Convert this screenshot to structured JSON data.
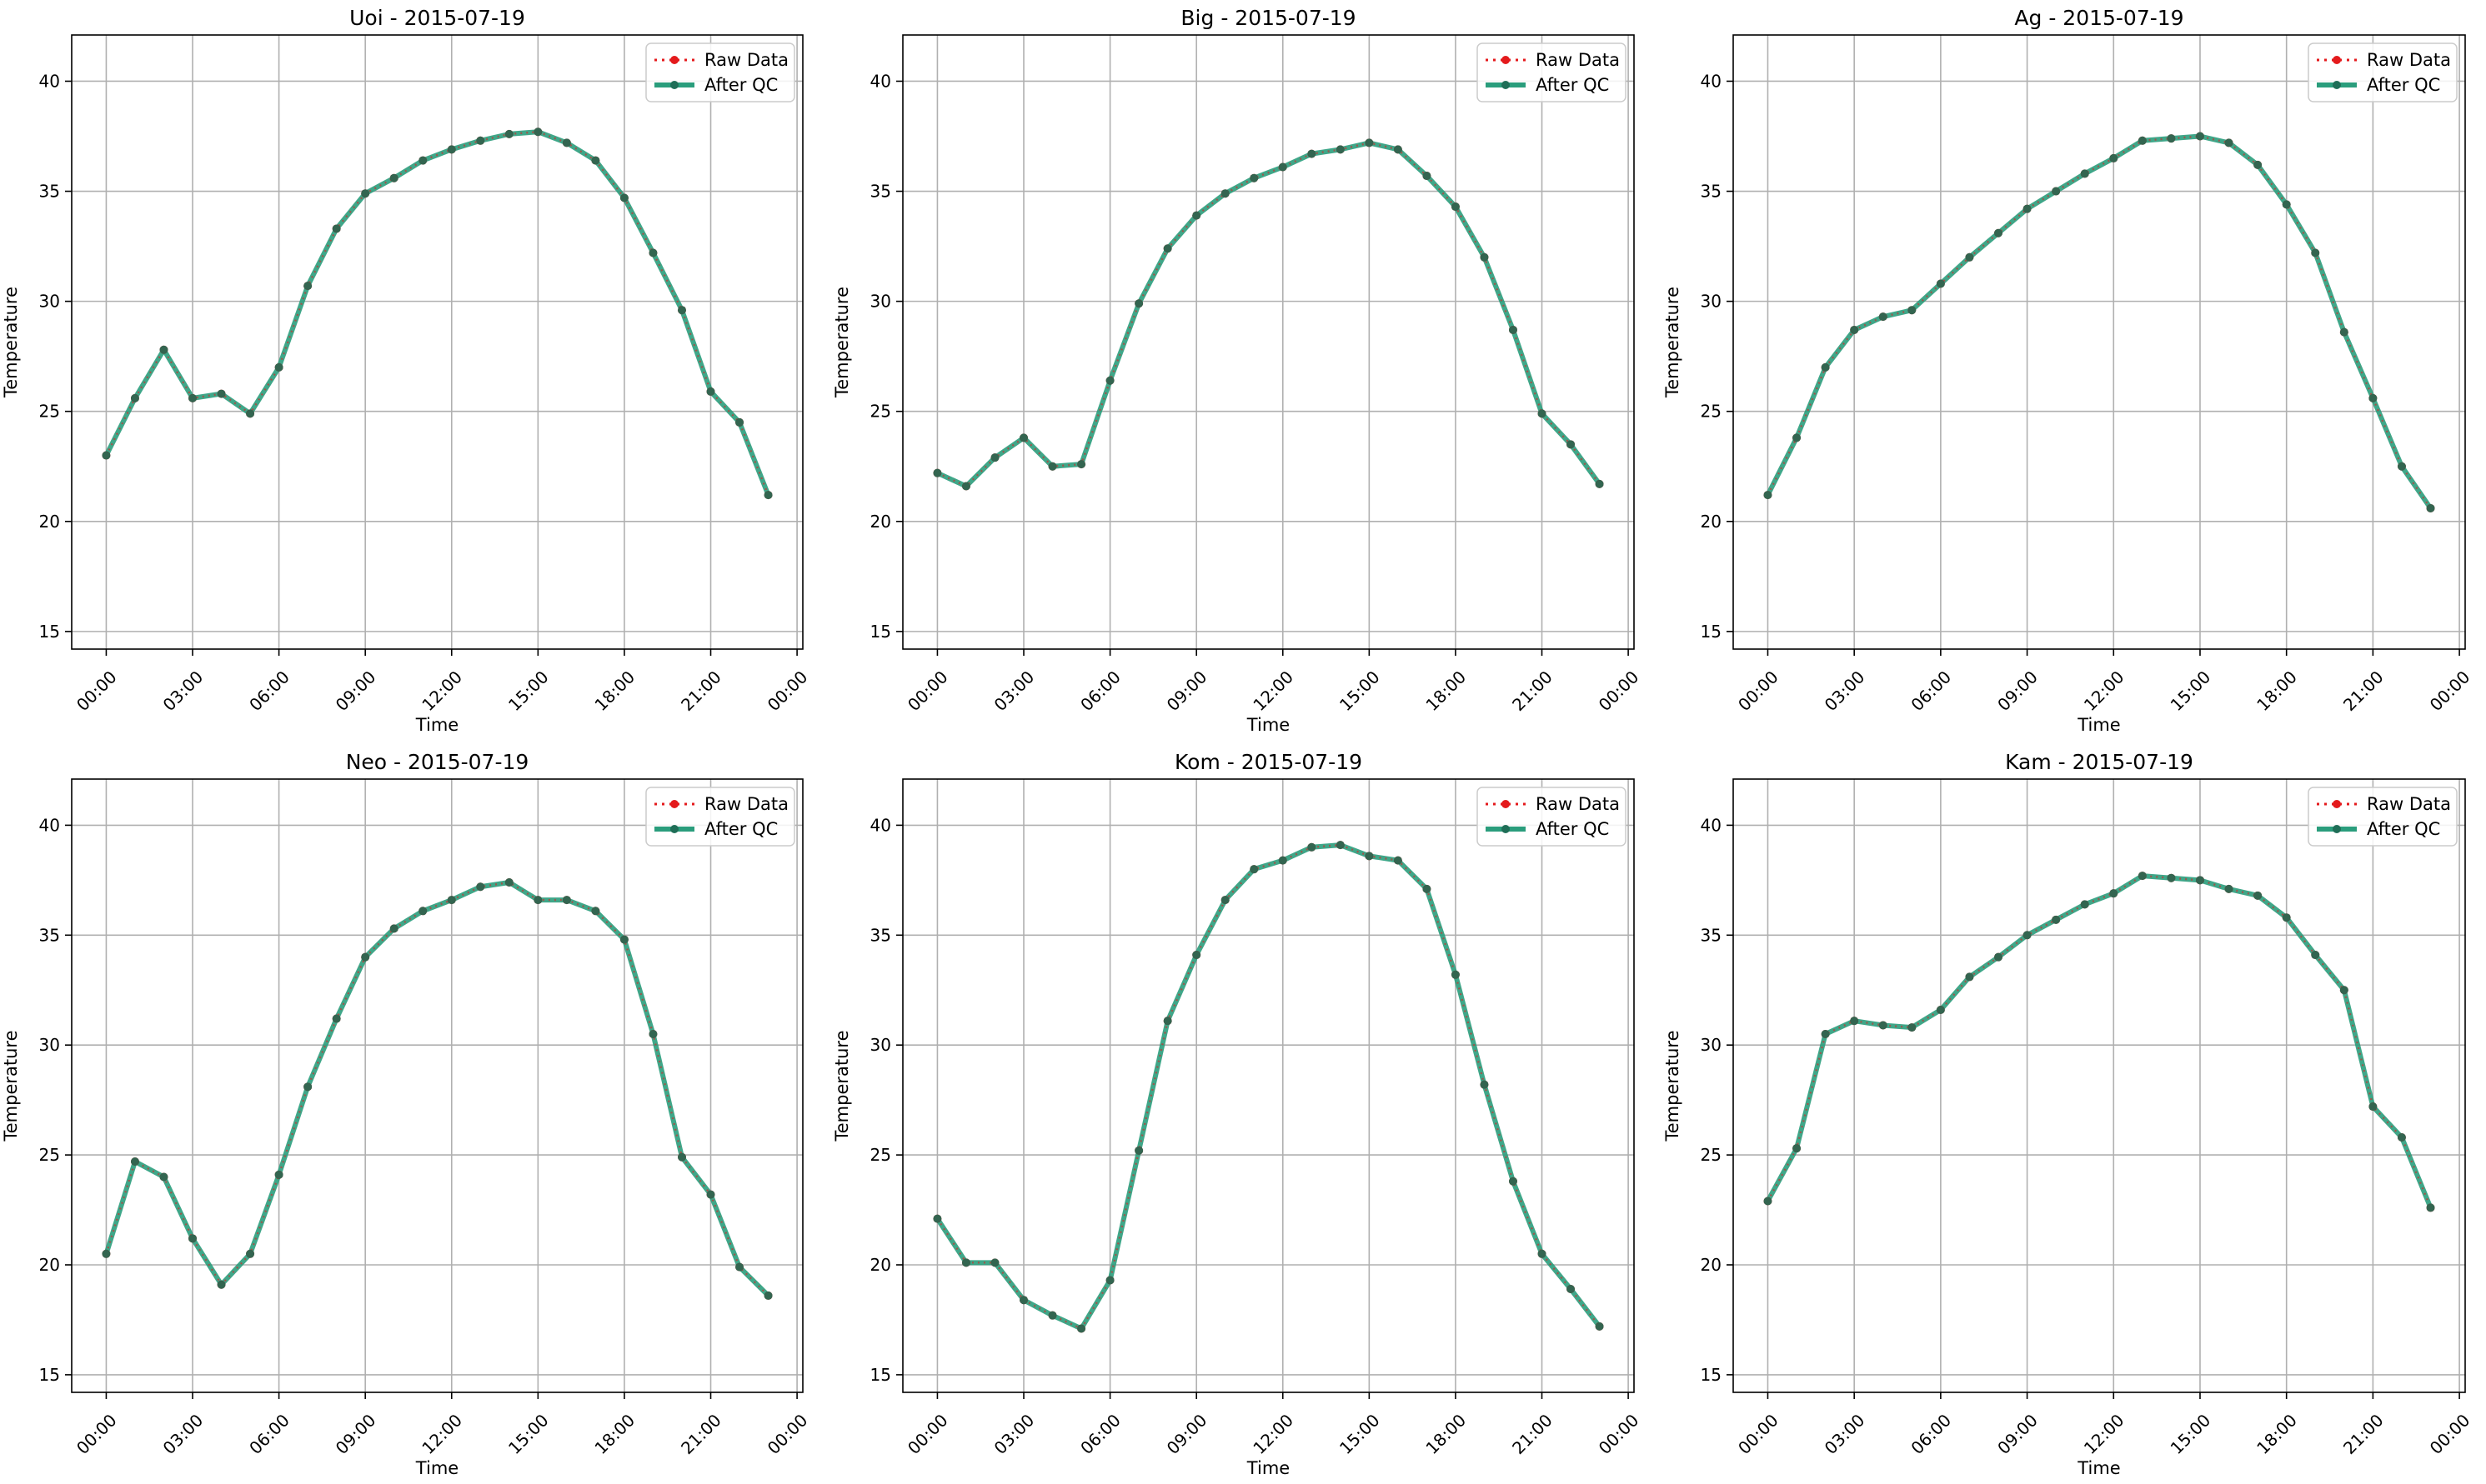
{
  "chart_data": [
    {
      "type": "line",
      "title": "Uoi - 2015-07-19",
      "xlabel": "Time",
      "ylabel": "Temperature",
      "x_tick_labels": [
        "00:00",
        "03:00",
        "06:00",
        "09:00",
        "12:00",
        "15:00",
        "18:00",
        "21:00",
        "00:00"
      ],
      "y_ticks": [
        15,
        20,
        25,
        30,
        35,
        40
      ],
      "ylim": [
        14.2,
        42.1
      ],
      "xlim": [
        "2015-07-18 22:48",
        "2015-07-20 00:12"
      ],
      "grid": true,
      "legend_position": "upper right",
      "x": [
        "00:00",
        "01:00",
        "02:00",
        "03:00",
        "04:00",
        "05:00",
        "06:00",
        "07:00",
        "08:00",
        "09:00",
        "10:00",
        "11:00",
        "12:00",
        "13:00",
        "14:00",
        "15:00",
        "16:00",
        "17:00",
        "18:00",
        "19:00",
        "20:00",
        "21:00",
        "22:00",
        "23:00"
      ],
      "series": [
        {
          "name": "Raw Data",
          "color": "#e41a1c",
          "style": "dotted",
          "marker": "circle",
          "values": [
            23.0,
            25.6,
            27.8,
            25.6,
            25.8,
            24.9,
            27.0,
            30.7,
            33.3,
            34.9,
            35.6,
            36.4,
            36.9,
            37.3,
            37.6,
            37.7,
            37.2,
            36.4,
            34.7,
            32.2,
            29.6,
            25.9,
            24.5,
            21.2
          ]
        },
        {
          "name": "After QC",
          "color": "#2a9d7c",
          "style": "solid",
          "marker": "circle",
          "values": [
            23.0,
            25.6,
            27.8,
            25.6,
            25.8,
            24.9,
            27.0,
            30.7,
            33.3,
            34.9,
            35.6,
            36.4,
            36.9,
            37.3,
            37.6,
            37.7,
            37.2,
            36.4,
            34.7,
            32.2,
            29.6,
            25.9,
            24.5,
            21.2
          ]
        }
      ]
    },
    {
      "type": "line",
      "title": "Big - 2015-07-19",
      "xlabel": "Time",
      "ylabel": "Temperature",
      "x_tick_labels": [
        "00:00",
        "03:00",
        "06:00",
        "09:00",
        "12:00",
        "15:00",
        "18:00",
        "21:00",
        "00:00"
      ],
      "y_ticks": [
        15,
        20,
        25,
        30,
        35,
        40
      ],
      "ylim": [
        14.2,
        42.1
      ],
      "xlim": [
        "2015-07-18 22:48",
        "2015-07-20 00:12"
      ],
      "grid": true,
      "legend_position": "upper right",
      "x": [
        "00:00",
        "01:00",
        "02:00",
        "03:00",
        "04:00",
        "05:00",
        "06:00",
        "07:00",
        "08:00",
        "09:00",
        "10:00",
        "11:00",
        "12:00",
        "13:00",
        "14:00",
        "15:00",
        "16:00",
        "17:00",
        "18:00",
        "19:00",
        "20:00",
        "21:00",
        "22:00",
        "23:00"
      ],
      "series": [
        {
          "name": "Raw Data",
          "color": "#e41a1c",
          "style": "dotted",
          "marker": "circle",
          "values": [
            22.2,
            21.6,
            22.9,
            23.8,
            22.5,
            22.6,
            26.4,
            29.9,
            32.4,
            33.9,
            34.9,
            35.6,
            36.1,
            36.7,
            36.9,
            37.2,
            36.9,
            35.7,
            34.3,
            32.0,
            28.7,
            24.9,
            23.5,
            21.7
          ]
        },
        {
          "name": "After QC",
          "color": "#2a9d7c",
          "style": "solid",
          "marker": "circle",
          "values": [
            22.2,
            21.6,
            22.9,
            23.8,
            22.5,
            22.6,
            26.4,
            29.9,
            32.4,
            33.9,
            34.9,
            35.6,
            36.1,
            36.7,
            36.9,
            37.2,
            36.9,
            35.7,
            34.3,
            32.0,
            28.7,
            24.9,
            23.5,
            21.7
          ]
        }
      ]
    },
    {
      "type": "line",
      "title": "Ag - 2015-07-19",
      "xlabel": "Time",
      "ylabel": "Temperature",
      "x_tick_labels": [
        "00:00",
        "03:00",
        "06:00",
        "09:00",
        "12:00",
        "15:00",
        "18:00",
        "21:00",
        "00:00"
      ],
      "y_ticks": [
        15,
        20,
        25,
        30,
        35,
        40
      ],
      "ylim": [
        14.2,
        42.1
      ],
      "xlim": [
        "2015-07-18 22:48",
        "2015-07-20 00:12"
      ],
      "grid": true,
      "legend_position": "upper right",
      "x": [
        "00:00",
        "01:00",
        "02:00",
        "03:00",
        "04:00",
        "05:00",
        "06:00",
        "07:00",
        "08:00",
        "09:00",
        "10:00",
        "11:00",
        "12:00",
        "13:00",
        "14:00",
        "15:00",
        "16:00",
        "17:00",
        "18:00",
        "19:00",
        "20:00",
        "21:00",
        "22:00",
        "23:00"
      ],
      "series": [
        {
          "name": "Raw Data",
          "color": "#e41a1c",
          "style": "dotted",
          "marker": "circle",
          "values": [
            21.2,
            23.8,
            27.0,
            28.7,
            29.3,
            29.6,
            30.8,
            32.0,
            33.1,
            34.2,
            35.0,
            35.8,
            36.5,
            37.3,
            37.4,
            37.5,
            37.2,
            36.2,
            34.4,
            32.2,
            28.6,
            25.6,
            22.5,
            20.6
          ]
        },
        {
          "name": "After QC",
          "color": "#2a9d7c",
          "style": "solid",
          "marker": "circle",
          "values": [
            21.2,
            23.8,
            27.0,
            28.7,
            29.3,
            29.6,
            30.8,
            32.0,
            33.1,
            34.2,
            35.0,
            35.8,
            36.5,
            37.3,
            37.4,
            37.5,
            37.2,
            36.2,
            34.4,
            32.2,
            28.6,
            25.6,
            22.5,
            20.6
          ]
        }
      ]
    },
    {
      "type": "line",
      "title": "Neo - 2015-07-19",
      "xlabel": "Time",
      "ylabel": "Temperature",
      "x_tick_labels": [
        "00:00",
        "03:00",
        "06:00",
        "09:00",
        "12:00",
        "15:00",
        "18:00",
        "21:00",
        "00:00"
      ],
      "y_ticks": [
        15,
        20,
        25,
        30,
        35,
        40
      ],
      "ylim": [
        14.2,
        42.1
      ],
      "xlim": [
        "2015-07-18 22:48",
        "2015-07-20 00:12"
      ],
      "grid": true,
      "legend_position": "upper right",
      "x": [
        "00:00",
        "01:00",
        "02:00",
        "03:00",
        "04:00",
        "05:00",
        "06:00",
        "07:00",
        "08:00",
        "09:00",
        "10:00",
        "11:00",
        "12:00",
        "13:00",
        "14:00",
        "15:00",
        "16:00",
        "17:00",
        "18:00",
        "19:00",
        "20:00",
        "21:00",
        "22:00",
        "23:00"
      ],
      "series": [
        {
          "name": "Raw Data",
          "color": "#e41a1c",
          "style": "dotted",
          "marker": "circle",
          "values": [
            20.5,
            24.7,
            24.0,
            21.2,
            19.1,
            20.5,
            24.1,
            28.1,
            31.2,
            34.0,
            35.3,
            36.1,
            36.6,
            37.2,
            37.4,
            36.6,
            36.6,
            36.1,
            34.8,
            30.5,
            24.9,
            23.2,
            19.9,
            18.6
          ]
        },
        {
          "name": "After QC",
          "color": "#2a9d7c",
          "style": "solid",
          "marker": "circle",
          "values": [
            20.5,
            24.7,
            24.0,
            21.2,
            19.1,
            20.5,
            24.1,
            28.1,
            31.2,
            34.0,
            35.3,
            36.1,
            36.6,
            37.2,
            37.4,
            36.6,
            36.6,
            36.1,
            34.8,
            30.5,
            24.9,
            23.2,
            19.9,
            18.6
          ]
        }
      ]
    },
    {
      "type": "line",
      "title": "Kom - 2015-07-19",
      "xlabel": "Time",
      "ylabel": "Temperature",
      "x_tick_labels": [
        "00:00",
        "03:00",
        "06:00",
        "09:00",
        "12:00",
        "15:00",
        "18:00",
        "21:00",
        "00:00"
      ],
      "y_ticks": [
        15,
        20,
        25,
        30,
        35,
        40
      ],
      "ylim": [
        14.2,
        42.1
      ],
      "xlim": [
        "2015-07-18 22:48",
        "2015-07-20 00:12"
      ],
      "grid": true,
      "legend_position": "upper right",
      "x": [
        "00:00",
        "01:00",
        "02:00",
        "03:00",
        "04:00",
        "05:00",
        "06:00",
        "07:00",
        "08:00",
        "09:00",
        "10:00",
        "11:00",
        "12:00",
        "13:00",
        "14:00",
        "15:00",
        "16:00",
        "17:00",
        "18:00",
        "19:00",
        "20:00",
        "21:00",
        "22:00",
        "23:00"
      ],
      "series": [
        {
          "name": "Raw Data",
          "color": "#e41a1c",
          "style": "dotted",
          "marker": "circle",
          "values": [
            22.1,
            20.1,
            20.1,
            18.4,
            17.7,
            17.1,
            19.3,
            25.2,
            31.1,
            34.1,
            36.6,
            38.0,
            38.4,
            39.0,
            39.1,
            38.6,
            38.4,
            37.1,
            33.2,
            28.2,
            23.8,
            20.5,
            18.9,
            17.2
          ]
        },
        {
          "name": "After QC",
          "color": "#2a9d7c",
          "style": "solid",
          "marker": "circle",
          "values": [
            22.1,
            20.1,
            20.1,
            18.4,
            17.7,
            17.1,
            19.3,
            25.2,
            31.1,
            34.1,
            36.6,
            38.0,
            38.4,
            39.0,
            39.1,
            38.6,
            38.4,
            37.1,
            33.2,
            28.2,
            23.8,
            20.5,
            18.9,
            17.2
          ]
        }
      ]
    },
    {
      "type": "line",
      "title": "Kam - 2015-07-19",
      "xlabel": "Time",
      "ylabel": "Temperature",
      "x_tick_labels": [
        "00:00",
        "03:00",
        "06:00",
        "09:00",
        "12:00",
        "15:00",
        "18:00",
        "21:00",
        "00:00"
      ],
      "y_ticks": [
        15,
        20,
        25,
        30,
        35,
        40
      ],
      "ylim": [
        14.2,
        42.1
      ],
      "xlim": [
        "2015-07-18 22:48",
        "2015-07-20 00:12"
      ],
      "grid": true,
      "legend_position": "upper right",
      "x": [
        "00:00",
        "01:00",
        "02:00",
        "03:00",
        "04:00",
        "05:00",
        "06:00",
        "07:00",
        "08:00",
        "09:00",
        "10:00",
        "11:00",
        "12:00",
        "13:00",
        "14:00",
        "15:00",
        "16:00",
        "17:00",
        "18:00",
        "19:00",
        "20:00",
        "21:00",
        "22:00",
        "23:00"
      ],
      "series": [
        {
          "name": "Raw Data",
          "color": "#e41a1c",
          "style": "dotted",
          "marker": "circle",
          "values": [
            22.9,
            25.3,
            30.5,
            31.1,
            30.9,
            30.8,
            31.6,
            33.1,
            34.0,
            35.0,
            35.7,
            36.4,
            36.9,
            37.7,
            37.6,
            37.5,
            37.1,
            36.8,
            35.8,
            34.1,
            32.5,
            27.2,
            25.8,
            22.6
          ]
        },
        {
          "name": "After QC",
          "color": "#2a9d7c",
          "style": "solid",
          "marker": "circle",
          "values": [
            22.9,
            25.3,
            30.5,
            31.1,
            30.9,
            30.8,
            31.6,
            33.1,
            34.0,
            35.0,
            35.7,
            36.4,
            36.9,
            37.7,
            37.6,
            37.5,
            37.1,
            36.8,
            35.8,
            34.1,
            32.5,
            27.2,
            25.8,
            22.6
          ]
        }
      ]
    }
  ]
}
